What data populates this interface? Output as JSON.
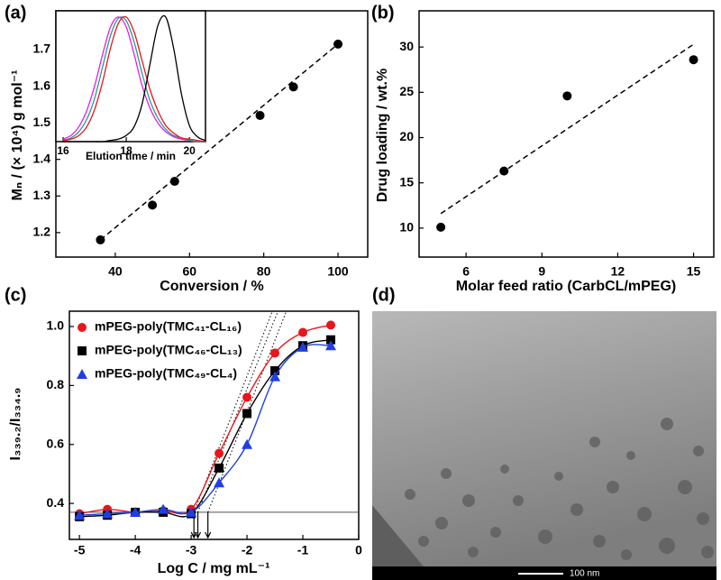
{
  "chart_data": [
    {
      "type": "scatter",
      "panel_label": "(a)",
      "xlabel": "Conversion / %",
      "ylabel": "Mₙ / (× 10⁴) g mol⁻¹",
      "x": [
        36,
        50,
        56,
        79,
        88,
        100
      ],
      "values": [
        1.18,
        1.275,
        1.34,
        1.52,
        1.598,
        1.715
      ],
      "color": "#000000",
      "fit": {
        "x": [
          36,
          100
        ],
        "values": [
          1.18,
          1.715
        ]
      },
      "xlim": [
        24,
        108
      ],
      "ylim": [
        1.133,
        1.806
      ],
      "xticks": [
        40,
        60,
        80,
        100
      ],
      "yticks": [
        1.2,
        1.3,
        1.4,
        1.5,
        1.6,
        1.7
      ],
      "inset": {
        "type": "line",
        "xlabel": "Elution time / min",
        "x": [
          16,
          16.25,
          16.5,
          16.75,
          17,
          17.25,
          17.5,
          17.75,
          18,
          18.25,
          18.5,
          18.75,
          19,
          19.25,
          19.5,
          19.75,
          20,
          20.25,
          20.5
        ],
        "xlim": [
          15.77,
          20.51
        ],
        "ylim": [
          0,
          1.05
        ],
        "xticks": [
          16,
          18,
          20
        ],
        "series": [
          {
            "color": "#e020e0",
            "values": [
              0.02,
              0.05,
              0.12,
              0.25,
              0.45,
              0.7,
              0.92,
              1.0,
              0.92,
              0.7,
              0.45,
              0.27,
              0.15,
              0.08,
              0.04,
              0.02,
              0.01,
              0,
              0
            ]
          },
          {
            "color": "#2a9a9a",
            "values": [
              0.01,
              0.03,
              0.08,
              0.18,
              0.35,
              0.6,
              0.85,
              0.99,
              0.97,
              0.8,
              0.55,
              0.33,
              0.19,
              0.1,
              0.05,
              0.03,
              0.01,
              0,
              0
            ]
          },
          {
            "color": "#e8161b",
            "values": [
              0.01,
              0.02,
              0.05,
              0.12,
              0.26,
              0.48,
              0.75,
              0.95,
              1.0,
              0.88,
              0.65,
              0.42,
              0.25,
              0.13,
              0.07,
              0.03,
              0.02,
              0.01,
              0
            ]
          },
          {
            "color": "#000000",
            "values": [
              0,
              0,
              0,
              0,
              0,
              0,
              0.01,
              0.02,
              0.05,
              0.12,
              0.3,
              0.62,
              0.93,
              1.0,
              0.75,
              0.38,
              0.13,
              0.04,
              0.01
            ]
          }
        ]
      }
    },
    {
      "type": "scatter",
      "panel_label": "(b)",
      "xlabel": "Molar feed ratio (CarbCL/mPEG)",
      "ylabel": "Drug loading / wt.%",
      "x": [
        5,
        7.5,
        10,
        15
      ],
      "values": [
        10.1,
        16.3,
        24.6,
        28.6
      ],
      "color": "#000000",
      "fit": {
        "x": [
          5,
          15
        ],
        "values": [
          11.6,
          30.3
        ]
      },
      "xlim": [
        4.14,
        15.8
      ],
      "ylim": [
        6.8,
        34
      ],
      "xticks": [
        6,
        9,
        12,
        15
      ],
      "yticks": [
        10,
        15,
        20,
        25,
        30
      ]
    },
    {
      "type": "scatter",
      "panel_label": "(c)",
      "xlabel": "Log C / mg mL⁻¹",
      "ylabel": "I₃₃₉.₂/I₃₃₄.₉",
      "x": [
        -5,
        -4.5,
        -4,
        -3.5,
        -3,
        -2.5,
        -2,
        -1.5,
        -1,
        -0.5
      ],
      "series": [
        {
          "name": "mPEG-poly(TMC₄₁-CL₁₆)",
          "color": "#e8161b",
          "marker": "circle",
          "values": [
            0.365,
            0.38,
            0.37,
            0.375,
            0.38,
            0.57,
            0.76,
            0.91,
            0.98,
            1.005
          ]
        },
        {
          "name": "mPEG-poly(TMC₄₆-CL₁₃)",
          "color": "#000000",
          "marker": "square",
          "values": [
            0.355,
            0.36,
            0.37,
            0.37,
            0.365,
            0.52,
            0.705,
            0.85,
            0.935,
            0.955
          ]
        },
        {
          "name": "mPEG-poly(TMC₄₉-CL₄)",
          "color": "#1f3fe0",
          "marker": "triangle",
          "values": [
            0.36,
            0.365,
            0.37,
            0.38,
            0.37,
            0.47,
            0.6,
            0.83,
            0.93,
            0.935
          ]
        }
      ],
      "baseline": 0.37,
      "tangents": [
        {
          "x": [
            -2.95,
            -1.55
          ],
          "values": [
            0.37,
            1.05
          ]
        },
        {
          "x": [
            -2.88,
            -1.45
          ],
          "values": [
            0.37,
            1.05
          ]
        },
        {
          "x": [
            -2.7,
            -1.3
          ],
          "values": [
            0.37,
            1.05
          ]
        }
      ],
      "cmc": [
        -2.95,
        -2.88,
        -2.7
      ],
      "xlim": [
        -5.18,
        0
      ],
      "ylim": [
        0.278,
        1.052
      ],
      "xticks": [
        -5,
        -4,
        -3,
        -2,
        -1,
        0
      ],
      "yticks": [
        0.4,
        0.6,
        0.8,
        {
          "value": 1,
          "label": "1.0"
        }
      ]
    }
  ],
  "image": {
    "panel_label": "(d)",
    "scale_bar": "100 nm"
  }
}
